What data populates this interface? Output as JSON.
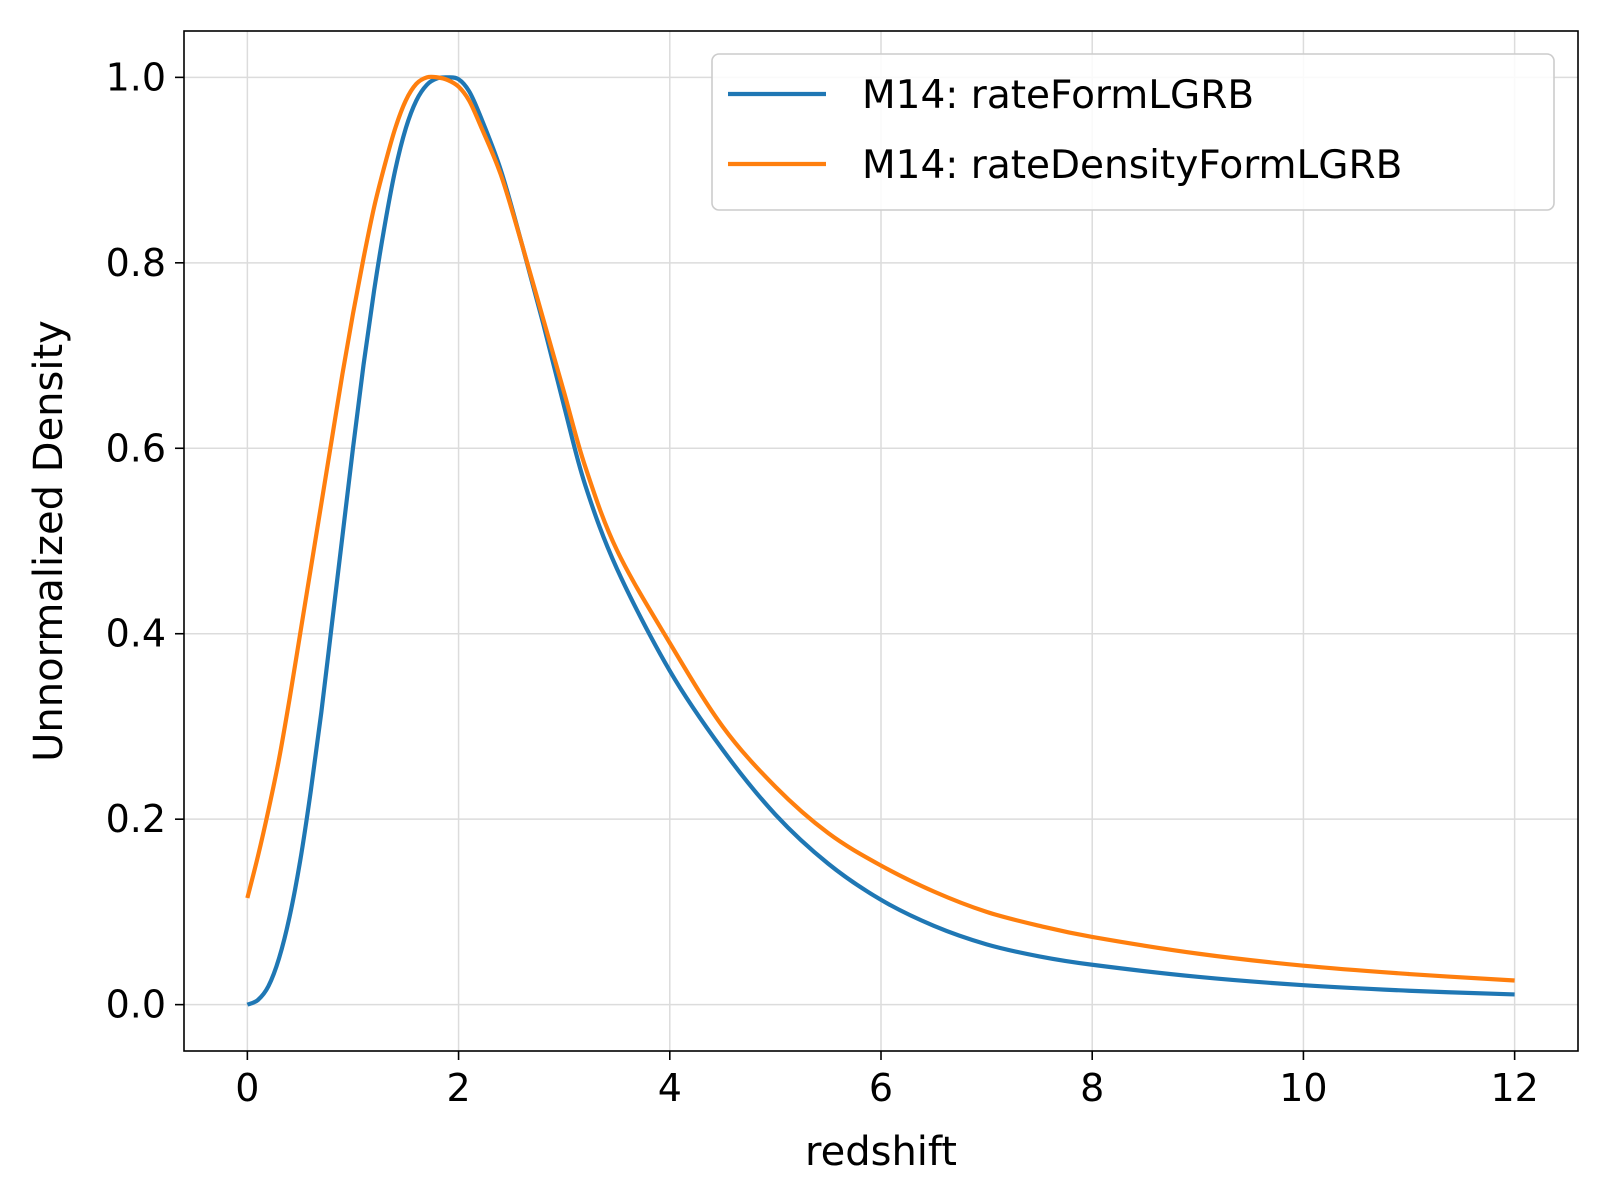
{
  "chart_data": {
    "type": "line",
    "xlabel": "redshift",
    "ylabel": "Unnormalized Density",
    "xlim": [
      -0.6,
      12.6
    ],
    "ylim": [
      -0.05,
      1.05
    ],
    "xticks": [
      0,
      2,
      4,
      6,
      8,
      10,
      12
    ],
    "xtick_labels": [
      "0",
      "2",
      "4",
      "6",
      "8",
      "10",
      "12"
    ],
    "yticks": [
      0.0,
      0.2,
      0.4,
      0.6,
      0.8,
      1.0
    ],
    "ytick_labels": [
      "0.0",
      "0.2",
      "0.4",
      "0.6",
      "0.8",
      "1.0"
    ],
    "grid": true,
    "legend_position": "top-right",
    "series": [
      {
        "name": "M14:  rateFormLGRB",
        "color": "#1f77b4",
        "x": [
          0,
          0.1,
          0.2,
          0.3,
          0.4,
          0.5,
          0.6,
          0.7,
          0.8,
          0.9,
          1.0,
          1.1,
          1.2,
          1.3,
          1.4,
          1.5,
          1.6,
          1.7,
          1.8,
          1.9,
          2.0,
          2.1,
          2.2,
          2.4,
          2.6,
          2.8,
          3.0,
          3.2,
          3.5,
          4.0,
          4.5,
          5.0,
          5.5,
          6.0,
          6.5,
          7.0,
          7.5,
          8.0,
          9.0,
          10.0,
          11.0,
          12.0
        ],
        "y": [
          0.0,
          0.005,
          0.02,
          0.05,
          0.095,
          0.155,
          0.23,
          0.315,
          0.41,
          0.505,
          0.6,
          0.69,
          0.77,
          0.84,
          0.9,
          0.945,
          0.975,
          0.992,
          0.999,
          1.0,
          0.998,
          0.985,
          0.96,
          0.9,
          0.82,
          0.735,
          0.645,
          0.56,
          0.47,
          0.36,
          0.275,
          0.205,
          0.152,
          0.113,
          0.085,
          0.065,
          0.052,
          0.043,
          0.03,
          0.021,
          0.015,
          0.011
        ]
      },
      {
        "name": "M14:  rateDensityFormLGRB",
        "color": "#ff7f0e",
        "x": [
          0,
          0.1,
          0.2,
          0.3,
          0.4,
          0.5,
          0.6,
          0.7,
          0.8,
          0.9,
          1.0,
          1.1,
          1.2,
          1.3,
          1.4,
          1.5,
          1.6,
          1.7,
          1.8,
          1.9,
          2.0,
          2.1,
          2.2,
          2.4,
          2.6,
          2.8,
          3.0,
          3.2,
          3.5,
          4.0,
          4.5,
          5.0,
          5.5,
          6.0,
          6.5,
          7.0,
          7.5,
          8.0,
          9.0,
          10.0,
          11.0,
          12.0
        ],
        "y": [
          0.115,
          0.16,
          0.21,
          0.265,
          0.33,
          0.4,
          0.47,
          0.54,
          0.61,
          0.68,
          0.745,
          0.805,
          0.86,
          0.905,
          0.945,
          0.975,
          0.993,
          1.0,
          1.0,
          0.997,
          0.99,
          0.975,
          0.95,
          0.895,
          0.82,
          0.74,
          0.66,
          0.58,
          0.49,
          0.39,
          0.3,
          0.235,
          0.185,
          0.15,
          0.122,
          0.1,
          0.085,
          0.073,
          0.055,
          0.042,
          0.033,
          0.026
        ]
      }
    ]
  }
}
